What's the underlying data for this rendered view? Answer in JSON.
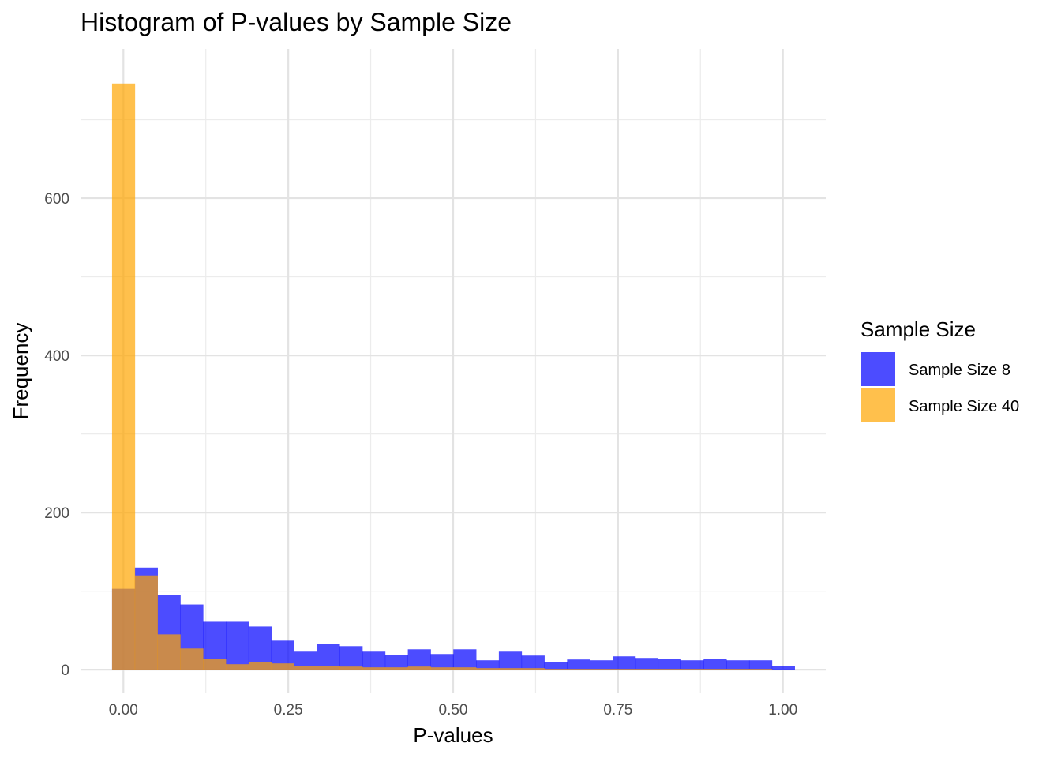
{
  "chart_data": {
    "type": "histogram",
    "title": "Histogram of P-values by Sample Size",
    "xlabel": "P-values",
    "ylabel": "Frequency",
    "xlim": [
      -0.065,
      1.065
    ],
    "ylim": [
      -30,
      790
    ],
    "x_ticks": [
      0.0,
      0.25,
      0.5,
      0.75,
      1.0
    ],
    "x_tick_labels": [
      "0.00",
      "0.25",
      "0.50",
      "0.75",
      "1.00"
    ],
    "y_ticks": [
      0,
      200,
      400,
      600
    ],
    "y_tick_labels": [
      "0",
      "200",
      "400",
      "600"
    ],
    "bin_width": 0.0345,
    "bin_start": -0.0172,
    "grid": true,
    "legend": {
      "title": "Sample Size",
      "position": "right"
    },
    "series": [
      {
        "name": "Sample Size 8",
        "color": "#0000FF",
        "opacity": 0.7,
        "values": [
          103,
          130,
          95,
          83,
          61,
          61,
          55,
          37,
          23,
          33,
          30,
          23,
          19,
          26,
          20,
          26,
          12,
          23,
          18,
          10,
          13,
          12,
          17,
          15,
          14,
          12,
          14,
          12,
          12,
          5
        ]
      },
      {
        "name": "Sample Size 40",
        "color": "#FFA500",
        "opacity": 0.7,
        "values": [
          746,
          120,
          45,
          27,
          14,
          7,
          10,
          8,
          5,
          5,
          4,
          3,
          3,
          4,
          3,
          3,
          2,
          2,
          2,
          1,
          1,
          1,
          1,
          1,
          1,
          1,
          1,
          1,
          1,
          0
        ]
      }
    ]
  }
}
